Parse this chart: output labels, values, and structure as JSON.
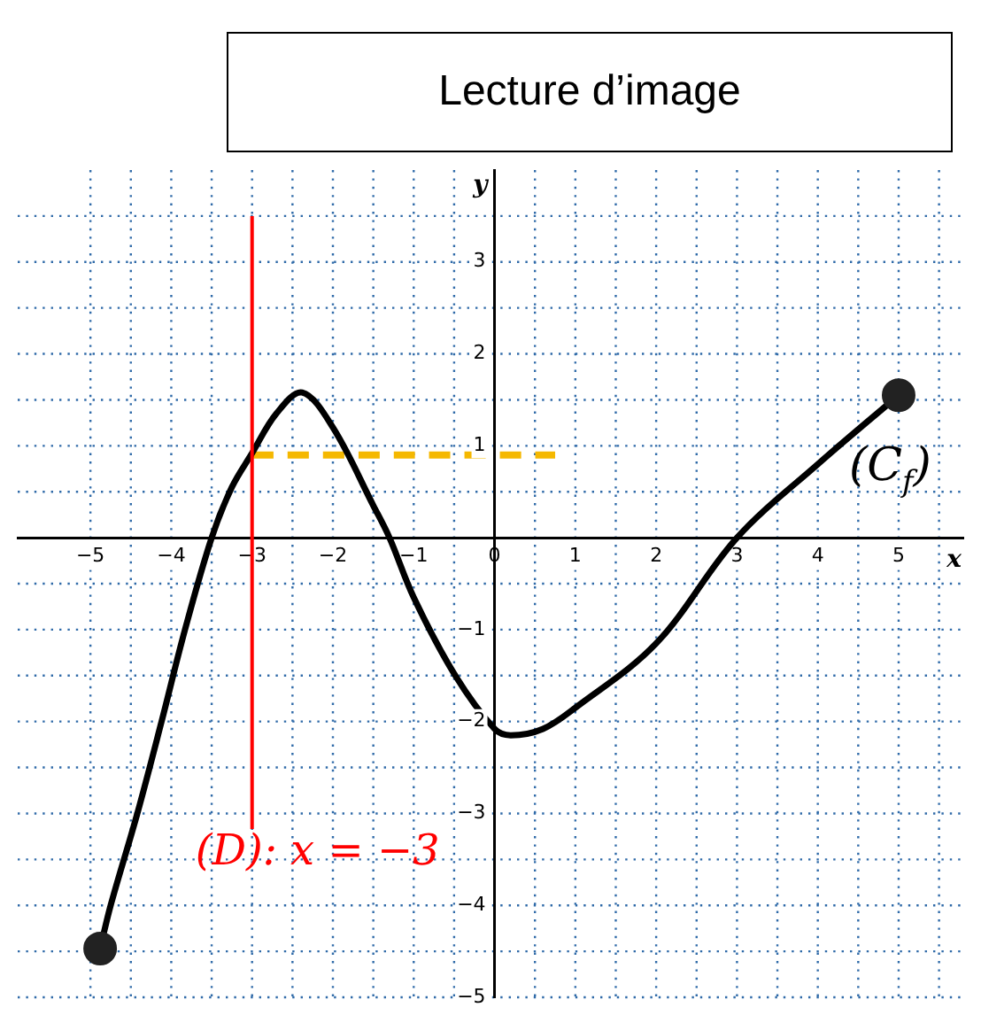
{
  "chart_data": {
    "type": "line",
    "title": "Lecture d’image",
    "xlabel": "x",
    "ylabel": "y",
    "xlim": [
      -5.9,
      5.8
    ],
    "ylim": [
      -5,
      4
    ],
    "xticks": [
      -5,
      {
        "value": -4.5,
        "label": null
      },
      -4,
      {
        "value": -3.5,
        "label": null
      },
      -3,
      {
        "value": -2.5,
        "label": null
      },
      -2,
      {
        "value": -1.5,
        "label": null
      },
      -1,
      {
        "value": -0.5,
        "label": null
      },
      0,
      {
        "value": 0.5,
        "label": null
      },
      1,
      {
        "value": 1.5,
        "label": null
      },
      2,
      {
        "value": 2.5,
        "label": null
      },
      3,
      {
        "value": 3.5,
        "label": null
      },
      4,
      {
        "value": 4.5,
        "label": null
      },
      5,
      {
        "value": 5.5,
        "label": null
      }
    ],
    "yticks": [
      -5,
      {
        "value": -4.5,
        "label": null
      },
      -4,
      {
        "value": -3.5,
        "label": null
      },
      -3,
      {
        "value": -2.5,
        "label": null
      },
      -2,
      {
        "value": -1.5,
        "label": null
      },
      -1,
      {
        "value": -0.5,
        "label": null
      },
      {
        "value": 0.5,
        "label": null
      },
      1,
      {
        "value": 1.5,
        "label": null
      },
      2,
      {
        "value": 2.5,
        "label": null
      },
      3,
      {
        "value": 3.5,
        "label": null
      }
    ],
    "grid": true,
    "legend": false,
    "series": [
      {
        "name": "(C$_{f}$)",
        "color": "#000000",
        "x": [
          -4.88,
          -4.75,
          -4.42,
          -4.12,
          -3.83,
          -3.5,
          -3.25,
          -3,
          -2.7,
          -2.38,
          -2,
          -1.5,
          -1.3,
          -1,
          -0.5,
          0,
          0.2,
          0.6,
          1,
          2,
          3,
          4,
          5
        ],
        "values": [
          -4.47,
          -4,
          -3,
          -2,
          -1,
          0,
          0.55,
          0.92,
          1.35,
          1.58,
          1.2,
          0.35,
          0,
          -0.65,
          -1.48,
          -2.08,
          -2.15,
          -2.08,
          -1.85,
          -1.15,
          0,
          0.8,
          1.55
        ]
      },
      {
        "type": "line",
        "color": "#f5b800",
        "line_style": "dashed",
        "x": [
          -3,
          0.75
        ],
        "values": [
          0.9,
          0.9
        ]
      },
      {
        "type": "scatter",
        "color": "#222222",
        "marker": "circle",
        "x": [
          -4.88,
          5
        ],
        "values": [
          -4.47,
          1.55
        ]
      }
    ],
    "ref_lines": [
      {
        "axis": "x",
        "value": -3,
        "label": "(D): x = −3",
        "color": "#ff0000"
      }
    ]
  }
}
